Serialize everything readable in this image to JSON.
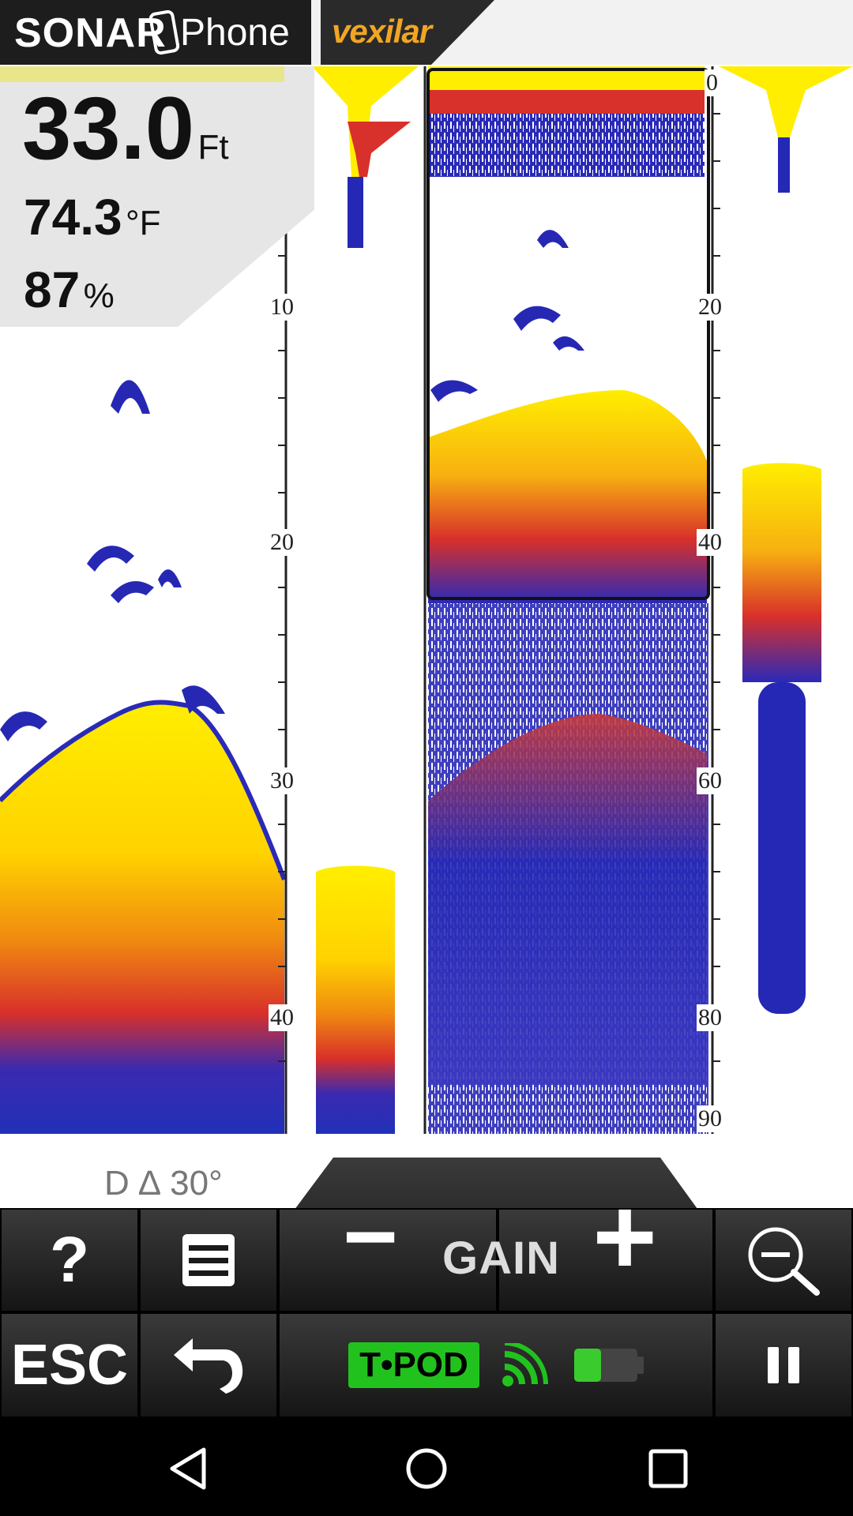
{
  "header": {
    "brand_sonar": "SONAR",
    "brand_phone": "Phone",
    "brand_vexilar": "vexilar"
  },
  "readout": {
    "depth": "33.0",
    "depth_unit": "Ft",
    "temperature": "74.3",
    "temperature_unit": "°F",
    "battery": "87",
    "battery_unit": "%"
  },
  "left_scale": {
    "labels": [
      "10",
      "20",
      "30",
      "40"
    ]
  },
  "right_scale": {
    "labels": [
      "0",
      "20",
      "40",
      "60",
      "80",
      "90"
    ]
  },
  "status": {
    "mode_indicator": "D ∆ 30°"
  },
  "toolbar": {
    "help_label": "?",
    "gain_label": "GAIN",
    "gain_minus": "−",
    "gain_plus": "+",
    "esc_label": "ESC",
    "tpod_label": "T•POD"
  },
  "icons": {
    "menu": "menu-icon",
    "zoom_out": "zoom-out-icon",
    "back": "back-arrow-icon",
    "signal": "wifi-signal-icon",
    "battery": "battery-icon",
    "pause": "pause-icon"
  },
  "colors": {
    "sonar_yellow": "#ffee00",
    "sonar_red": "#e32b1f",
    "sonar_blue": "#1c2ab8",
    "tpod_green": "#22c21e"
  }
}
